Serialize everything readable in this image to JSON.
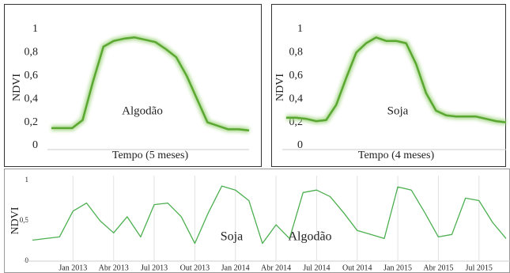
{
  "chart_data": [
    {
      "type": "line",
      "ylabel": "NDVI",
      "xlabel": "Tempo (5 meses)",
      "annotation": "Algodão",
      "color": "#5aa832",
      "values": [
        0.15,
        0.15,
        0.15,
        0.22,
        0.55,
        0.85,
        0.9,
        0.92,
        0.93,
        0.91,
        0.89,
        0.83,
        0.76,
        0.6,
        0.4,
        0.2,
        0.17,
        0.14,
        0.14,
        0.13
      ],
      "ylim": [
        0,
        1
      ],
      "yticks": [
        0,
        {
          "value": 0.2,
          "label": "0,2"
        },
        {
          "value": 0.4,
          "label": "0,4"
        },
        {
          "value": 0.6,
          "label": "0,6"
        },
        {
          "value": 0.8,
          "label": "0,8"
        },
        1
      ]
    },
    {
      "type": "line",
      "ylabel": "NDVI",
      "xlabel": "Tempo (4 meses)",
      "annotation": "Soja",
      "color": "#5aa832",
      "values": [
        0.24,
        0.24,
        0.23,
        0.21,
        0.22,
        0.35,
        0.58,
        0.8,
        0.88,
        0.93,
        0.9,
        0.9,
        0.88,
        0.7,
        0.45,
        0.3,
        0.26,
        0.25,
        0.25,
        0.25,
        0.23,
        0.21,
        0.2
      ],
      "ylim": [
        0,
        1
      ],
      "yticks": [
        0,
        {
          "value": 0.2,
          "label": "0,2"
        },
        {
          "value": 0.4,
          "label": "0,4"
        },
        {
          "value": 0.6,
          "label": "0,6"
        },
        {
          "value": 0.8,
          "label": "0,8"
        },
        1
      ]
    },
    {
      "type": "line",
      "ylabel": "NDVI",
      "annotations": [
        "Soja",
        "Algodão"
      ],
      "color": "#4caf50",
      "categories": [
        null,
        null,
        null,
        "Jan 2013",
        null,
        null,
        "Abr 2013",
        null,
        null,
        "Jul 2013",
        null,
        null,
        "Out 2013",
        null,
        null,
        "Jan 2014",
        null,
        null,
        "Abr 2014",
        null,
        null,
        "Jul 2014",
        null,
        null,
        "Out 2014",
        null,
        null,
        "Jan 2015",
        null,
        null,
        "Abr 2015",
        null,
        null,
        "Jul 2015",
        null,
        null
      ],
      "values": [
        0.26,
        0.28,
        0.3,
        0.62,
        0.72,
        0.5,
        0.35,
        0.55,
        0.3,
        0.7,
        0.72,
        0.55,
        0.22,
        0.6,
        0.93,
        0.88,
        0.75,
        0.22,
        0.45,
        0.28,
        0.85,
        0.88,
        0.8,
        0.6,
        0.38,
        0.33,
        0.28,
        0.92,
        0.88,
        0.6,
        0.3,
        0.33,
        0.78,
        0.75,
        0.48,
        0.28
      ],
      "ylim": [
        0,
        1
      ],
      "yticks": [
        0,
        {
          "value": 0.5,
          "label": "0,5"
        },
        1
      ]
    }
  ]
}
